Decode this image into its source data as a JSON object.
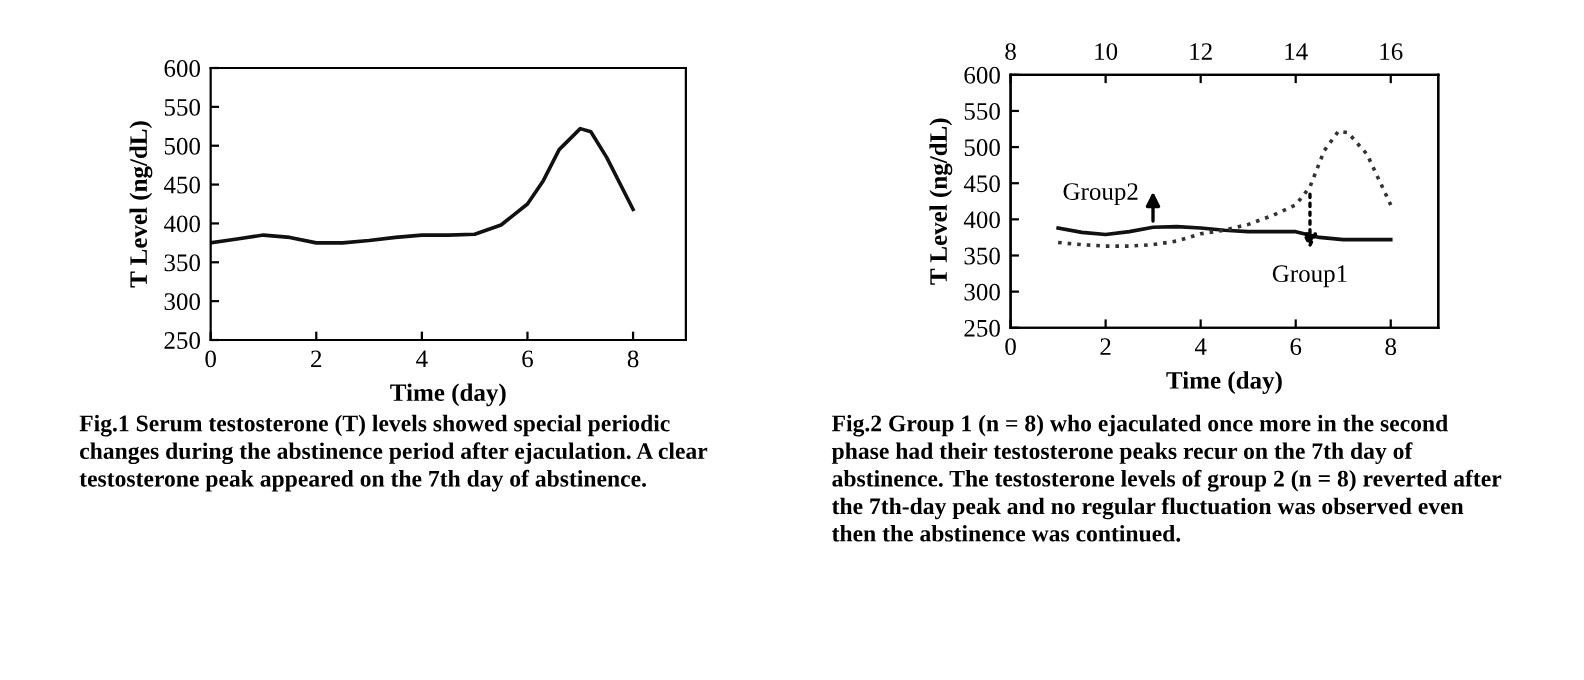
{
  "chart_data": [
    {
      "type": "line",
      "xlabel": "Time (day)",
      "ylabel": "T Level (ng/dL)",
      "xlim": [
        0,
        9
      ],
      "xticks": [
        0,
        2,
        4,
        6,
        8
      ],
      "ylim": [
        250,
        600
      ],
      "yticks": [
        250,
        300,
        350,
        400,
        450,
        500,
        550,
        600
      ],
      "grid": false,
      "legend": false,
      "series": [
        {
          "color": "#111111",
          "line_style": "solid",
          "x": [
            0,
            0.5,
            1,
            1.5,
            2,
            2.5,
            3,
            3.5,
            4,
            4.5,
            5,
            5.5,
            6,
            6.3,
            6.6,
            7,
            7.2,
            7.5,
            8
          ],
          "values": [
            375,
            380,
            385,
            382,
            375,
            375,
            378,
            382,
            385,
            385,
            386,
            398,
            425,
            455,
            495,
            522,
            518,
            485,
            418
          ]
        }
      ],
      "annotations": [
        "Fig.1 Serum testosterone (T) levels showed special periodic changes during the abstinence period after ejaculation. A clear testosterone peak appeared on the 7th day of abstinence."
      ]
    },
    {
      "type": "line",
      "xlabel": "Time (day)",
      "ylabel": "T Level (ng/dL)",
      "xlim": [
        0,
        9
      ],
      "xticks": [
        0,
        2,
        4,
        6,
        8
      ],
      "x2lim": [
        8,
        17
      ],
      "x2ticks": [
        8,
        10,
        12,
        14,
        16
      ],
      "ylim": [
        250,
        600
      ],
      "yticks": [
        250,
        300,
        350,
        400,
        450,
        500,
        550,
        600
      ],
      "grid": false,
      "legend": false,
      "series": [
        {
          "color": "#111111",
          "line_style": "solid",
          "x": [
            1,
            1.5,
            2,
            2.5,
            3,
            3.5,
            4,
            4.5,
            5,
            5.5,
            6,
            6.5,
            7,
            8
          ],
          "values": [
            388,
            382,
            379,
            383,
            389,
            390,
            388,
            385,
            383,
            383,
            383,
            375,
            372,
            372
          ]
        },
        {
          "color": "#333333",
          "line_style": "dotted",
          "x": [
            1,
            1.5,
            2,
            2.5,
            3,
            3.5,
            4,
            4.5,
            5,
            5.5,
            6,
            6.3,
            6.6,
            6.9,
            7.1,
            7.5,
            8
          ],
          "values": [
            368,
            365,
            363,
            363,
            365,
            370,
            380,
            385,
            393,
            405,
            420,
            445,
            495,
            522,
            520,
            490,
            420
          ]
        }
      ],
      "annotations": [
        "Group2",
        "Group1",
        "Fig.2 Group 1 (n = 8) who ejaculated once more in the second phase had their testosterone peaks recur on the 7th day of abstinence. The testosterone levels of group 2 (n = 8) reverted after the 7th-day peak and no regular fluctuation was observed even then the abstinence was continued."
      ]
    }
  ]
}
